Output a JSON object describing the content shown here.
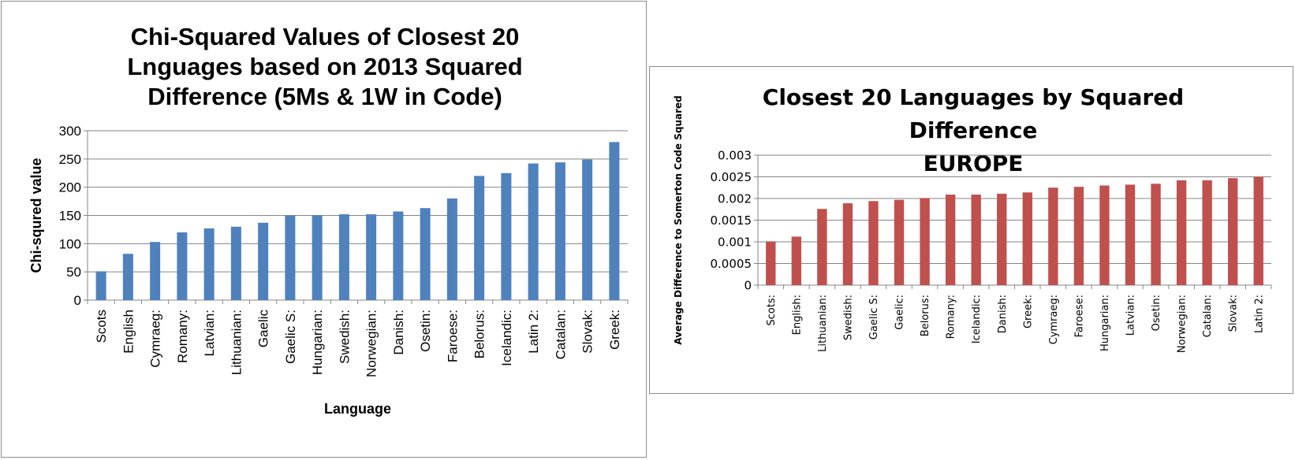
{
  "charts": [
    {
      "type": "bar",
      "title": "Chi-Squared Values of Closest 20 Lnguages based on 2013 Squared Difference (5Ms & 1W in Code)",
      "xlabel": "Language",
      "ylabel": "Chi-squred value",
      "ylim": [
        0,
        300
      ],
      "yticks": [
        "0",
        "50",
        "100",
        "150",
        "200",
        "250",
        "300"
      ],
      "grid": true,
      "bar_color": "#4f81bd",
      "categories": [
        "Scots",
        "English",
        "Cymraeg:",
        "Romany:",
        "Latvian:",
        "Lithuanian:",
        "Gaelic",
        "Gaelic S:",
        "Hungarian:",
        "Swedish:",
        "Norwegian:",
        "Danish:",
        "Osetin:",
        "Faroese:",
        "Belorus:",
        "Icelandic:",
        "Latin 2:",
        "Catalan:",
        "Slovak:",
        "Greek:"
      ],
      "values": [
        51,
        82,
        103,
        120,
        127,
        130,
        137,
        150,
        150,
        152,
        152,
        157,
        163,
        180,
        220,
        225,
        242,
        244,
        249,
        280
      ]
    },
    {
      "type": "bar",
      "title": "Closest 20 Languages by Squared Difference",
      "subtitle": "EUROPE",
      "xlabel": "",
      "ylabel": "Average Difference to Somerton Code Squared",
      "ylim": [
        0,
        0.003
      ],
      "yticks": [
        "0",
        "0.0005",
        "0.001",
        "0.0015",
        "0.002",
        "0.0025",
        "0.003"
      ],
      "grid": true,
      "bar_color": "#c0504d",
      "categories": [
        "Scots:",
        "English:",
        "Lithuanian:",
        "Swedish:",
        "Gaelic S:",
        "Gaelic:",
        "Belorus:",
        "Romany:",
        "Icelandic:",
        "Danish:",
        "Greek:",
        "Cymraeg:",
        "Faroese:",
        "Hungarian:",
        "Latvian:",
        "Osetin:",
        "Norwegian:",
        "Catalan:",
        "Slovak:",
        "Latin 2:"
      ],
      "values": [
        0.00101,
        0.00112,
        0.00176,
        0.00189,
        0.00194,
        0.00197,
        0.00201,
        0.00209,
        0.00209,
        0.00211,
        0.00214,
        0.00225,
        0.00227,
        0.0023,
        0.00232,
        0.00234,
        0.00242,
        0.00242,
        0.00247,
        0.0025
      ]
    }
  ]
}
